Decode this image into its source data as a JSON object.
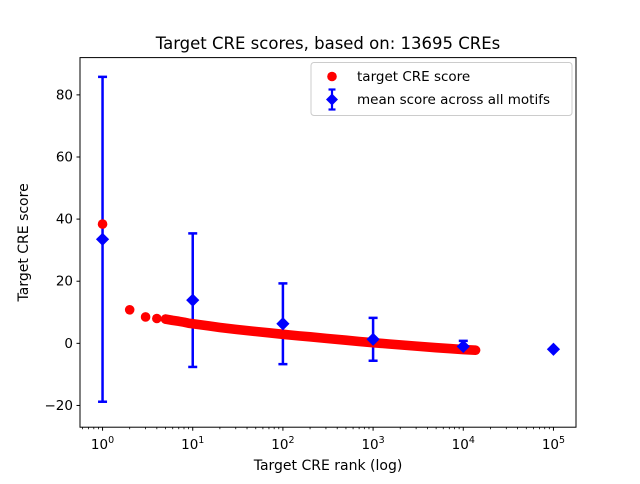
{
  "title": "Target CRE scores, based on: 13695 CREs",
  "chart_data": {
    "type": "scatter",
    "title": "Target CRE scores, based on: 13695 CREs",
    "xlabel": "Target CRE rank (log)",
    "ylabel": "Target CRE score",
    "x_scale": "log",
    "xlim_log10": [
      -0.25,
      5.25
    ],
    "ylim": [
      -27,
      92
    ],
    "x_tick_exponents": [
      0,
      1,
      2,
      3,
      4,
      5
    ],
    "y_ticks": [
      -20,
      0,
      20,
      40,
      60,
      80
    ],
    "grid": false,
    "legend_position": "upper right",
    "series": [
      {
        "name": "target CRE score",
        "type": "scatter",
        "marker": "circle",
        "color": "#ff0000",
        "points": [
          [
            1,
            38.4
          ],
          [
            2,
            10.8
          ],
          [
            3,
            8.5
          ],
          [
            4,
            8.0
          ],
          [
            5,
            7.8
          ],
          [
            6,
            7.4
          ],
          [
            7,
            7.1
          ],
          [
            8,
            6.8
          ],
          [
            9,
            6.5
          ],
          [
            10,
            6.3
          ],
          [
            15,
            5.6
          ],
          [
            20,
            5.1
          ],
          [
            30,
            4.5
          ],
          [
            50,
            3.8
          ],
          [
            70,
            3.4
          ],
          [
            100,
            2.9
          ],
          [
            150,
            2.4
          ],
          [
            200,
            2.1
          ],
          [
            300,
            1.6
          ],
          [
            500,
            1.0
          ],
          [
            700,
            0.6
          ],
          [
            1000,
            0.2
          ],
          [
            1500,
            -0.2
          ],
          [
            2000,
            -0.5
          ],
          [
            3000,
            -0.9
          ],
          [
            5000,
            -1.4
          ],
          [
            7000,
            -1.7
          ],
          [
            10000,
            -2.0
          ],
          [
            13695,
            -2.2
          ]
        ]
      },
      {
        "name": "mean score across all motifs",
        "type": "errorbar",
        "marker": "diamond",
        "color": "#0000ff",
        "points": [
          {
            "x": 1,
            "mean": 33.5,
            "std": 52.3
          },
          {
            "x": 10,
            "mean": 13.9,
            "std": 21.5
          },
          {
            "x": 100,
            "mean": 6.3,
            "std": 13.0
          },
          {
            "x": 1000,
            "mean": 1.3,
            "std": 6.9
          },
          {
            "x": 10000,
            "mean": -1.0,
            "std": 1.8
          },
          {
            "x": 100000,
            "mean": -1.9,
            "std": 0.0
          }
        ]
      }
    ]
  },
  "legend": {
    "items": [
      {
        "label": "target CRE score",
        "marker": "red-circle",
        "color": "#ff0000"
      },
      {
        "label": "mean score across all motifs",
        "marker": "blue-diamond-errorbar",
        "color": "#0000ff"
      }
    ]
  },
  "colors": {
    "red": "#ff0000",
    "blue": "#0000ff",
    "axis": "#000000",
    "legend_border": "#cccccc",
    "background": "#ffffff"
  }
}
